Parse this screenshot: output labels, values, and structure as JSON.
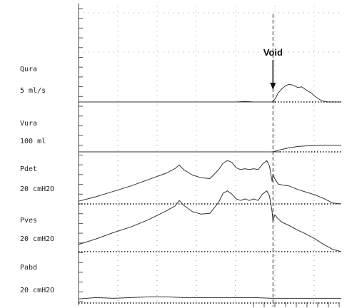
{
  "chart_data": {
    "type": "line",
    "x_unit": "s",
    "xlim": [
      0,
      300
    ],
    "void_time": 222,
    "annotation": "Void",
    "grid": "dotted",
    "channels": [
      {
        "key": "qura",
        "name": "Qura",
        "scale": "5 ml/s",
        "units": "ml/s",
        "ylim": [
          0,
          11
        ],
        "x": [
          0,
          50,
          100,
          150,
          180,
          190,
          200,
          210,
          220,
          222,
          225,
          228,
          232,
          236,
          240,
          245,
          250,
          255,
          260,
          265,
          270,
          275,
          280,
          285,
          290,
          300
        ],
        "values": [
          0,
          0,
          0,
          0,
          0,
          0.2,
          0,
          0,
          0,
          0.1,
          1.5,
          3.5,
          5.0,
          6.2,
          6.8,
          6.5,
          5.6,
          5.8,
          4.6,
          3.6,
          2.2,
          1.0,
          0.2,
          0,
          0,
          0
        ]
      },
      {
        "key": "vura",
        "name": "Vura",
        "scale": "100 ml",
        "units": "ml",
        "ylim": [
          0,
          220
        ],
        "x": [
          0,
          100,
          200,
          222,
          230,
          240,
          250,
          260,
          270,
          280,
          290,
          300
        ],
        "values": [
          0,
          0,
          0,
          0,
          15,
          30,
          40,
          45,
          48,
          50,
          50,
          50
        ]
      },
      {
        "key": "pdet",
        "name": "Pdet",
        "scale": "20 cmH2O",
        "units": "cmH2O",
        "ylim": [
          0,
          90
        ],
        "x": [
          0,
          20,
          40,
          60,
          80,
          100,
          110,
          115,
          120,
          130,
          140,
          150,
          160,
          165,
          170,
          175,
          180,
          185,
          190,
          195,
          200,
          205,
          210,
          215,
          218,
          221,
          222,
          224,
          228,
          232,
          240,
          250,
          260,
          270,
          280,
          290,
          300
        ],
        "values": [
          3,
          8,
          14,
          20,
          27,
          34,
          39,
          43,
          38,
          32,
          29,
          28,
          38,
          45,
          48,
          46,
          40,
          38,
          39,
          38,
          39,
          38,
          44,
          48,
          42,
          25,
          33,
          28,
          22,
          21,
          20,
          16,
          13,
          10,
          6,
          1,
          0
        ]
      },
      {
        "key": "pves",
        "name": "Pves",
        "scale": "20 cmH2O",
        "units": "cmH2O",
        "ylim": [
          0,
          115
        ],
        "x": [
          0,
          20,
          40,
          60,
          80,
          100,
          110,
          115,
          120,
          130,
          140,
          150,
          160,
          165,
          170,
          175,
          180,
          185,
          190,
          195,
          200,
          205,
          210,
          215,
          218,
          221,
          222,
          224,
          228,
          232,
          240,
          250,
          260,
          270,
          280,
          290,
          300
        ],
        "values": [
          9,
          16,
          24,
          31,
          40,
          51,
          57,
          64,
          58,
          50,
          47,
          48,
          62,
          73,
          76,
          72,
          66,
          64,
          66,
          64,
          66,
          64,
          72,
          76,
          70,
          50,
          38,
          46,
          41,
          37,
          33,
          27,
          22,
          16,
          9,
          3,
          0
        ]
      },
      {
        "key": "pabd",
        "name": "Pabd",
        "scale": "20 cmH2O",
        "units": "cmH2O",
        "ylim": [
          0,
          100
        ],
        "x": [
          0,
          20,
          40,
          60,
          80,
          100,
          120,
          140,
          160,
          180,
          200,
          222,
          240,
          260,
          280,
          300
        ],
        "values": [
          6,
          8,
          7,
          8,
          9,
          9,
          8,
          8,
          8,
          8,
          8,
          7,
          7,
          7,
          7,
          7
        ]
      }
    ]
  }
}
